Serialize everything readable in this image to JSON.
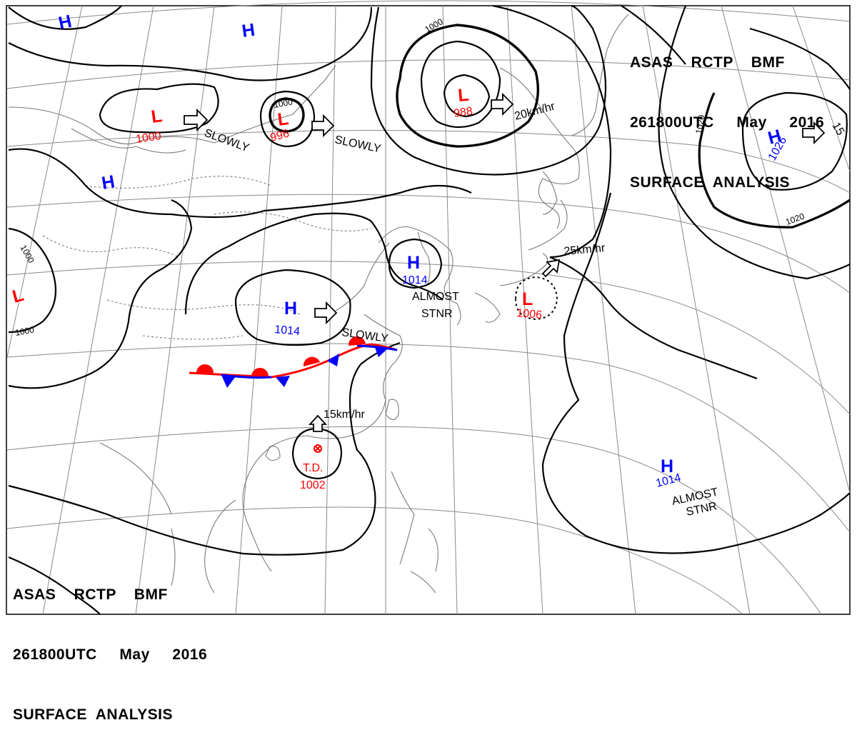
{
  "header_top_right": {
    "line1": "ASAS    RCTP    BMF",
    "line2": "261800UTC     May     2016",
    "line3": "SURFACE  ANALYSIS"
  },
  "header_bottom_left": {
    "line1": "ASAS    RCTP    BMF",
    "line2": "261800UTC     May     2016",
    "line3": "SURFACE  ANALYSIS"
  },
  "pressure_systems": [
    {
      "id": "h-nw-top",
      "type": "H",
      "pressure": ""
    },
    {
      "id": "h-n-top",
      "type": "H",
      "pressure": ""
    },
    {
      "id": "l-1000",
      "type": "L",
      "pressure": "1000",
      "motion": "SLOWLY"
    },
    {
      "id": "l-996",
      "type": "L",
      "pressure": "996",
      "motion": "SLOWLY"
    },
    {
      "id": "l-988",
      "type": "L",
      "pressure": "988",
      "motion": "20km/hr"
    },
    {
      "id": "h-1026",
      "type": "H",
      "pressure": "1026",
      "motion": "15"
    },
    {
      "id": "h-west",
      "type": "H",
      "pressure": ""
    },
    {
      "id": "l-west",
      "type": "L",
      "pressure": ""
    },
    {
      "id": "h-1014-china",
      "type": "H",
      "pressure": "1014",
      "motion": "SLOWLY"
    },
    {
      "id": "h-1014-korea",
      "type": "H",
      "pressure": "1014",
      "motion": "ALMOST STNR"
    },
    {
      "id": "l-1006",
      "type": "L",
      "pressure": "1006",
      "motion": "25km/hr"
    },
    {
      "id": "td-1002",
      "type": "T.D.",
      "pressure": "1002",
      "motion": "15km/hr"
    },
    {
      "id": "h-1014-pacific",
      "type": "H",
      "pressure": "1014",
      "motion": "ALMOST STNR"
    }
  ],
  "labels": {
    "h": "H",
    "l": "L",
    "td": "T.D.",
    "p1000": "1000",
    "p996": "996",
    "p988": "988",
    "p1026": "1026",
    "p1014": "1014",
    "p1006": "1006",
    "p1002": "1002",
    "slowly": "SLOWLY",
    "speed20": "20km/hr",
    "speed25": "25km/hr",
    "speed15": "15km/hr",
    "speed15b": "15",
    "almost": "ALMOST",
    "stnr": "STNR",
    "iso1000": "1000",
    "iso1020": "1020"
  },
  "colors": {
    "high": "#0000ff",
    "low": "#ff0000",
    "high_value": "#0000cc",
    "isobar": "#000000",
    "coast": "#707070",
    "grid": "#808080",
    "warm_front": "#ff0000",
    "cold_front": "#0000ff"
  }
}
